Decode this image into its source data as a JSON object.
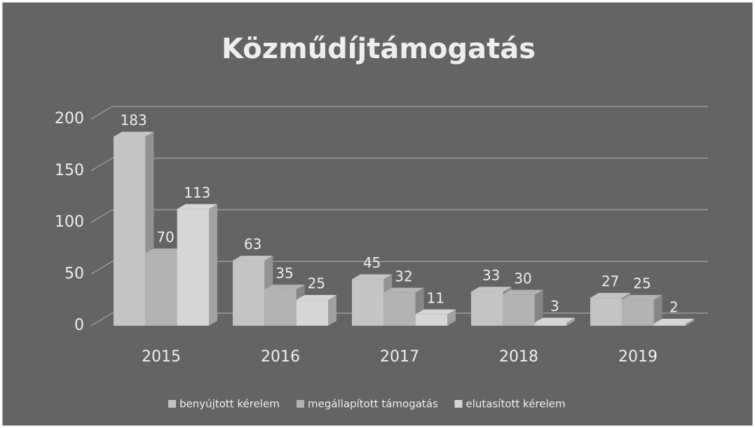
{
  "chart_data": {
    "type": "bar",
    "title": "Közműdíjtámogatás",
    "categories": [
      "2015",
      "2016",
      "2017",
      "2018",
      "2019"
    ],
    "series": [
      {
        "name": "benyújtott kérelem",
        "color": "#c4c4c4",
        "values": [
          183,
          63,
          45,
          33,
          27
        ]
      },
      {
        "name": "megállapított támogatás",
        "color": "#b3b3b3",
        "values": [
          70,
          35,
          32,
          30,
          25
        ]
      },
      {
        "name": "elutasított kérelem",
        "color": "#d6d6d6",
        "values": [
          113,
          25,
          11,
          3,
          2
        ]
      }
    ],
    "ylim": [
      0,
      200
    ],
    "yticks": [
      0,
      50,
      100,
      150,
      200
    ],
    "grid": true,
    "legend": "bottom"
  }
}
